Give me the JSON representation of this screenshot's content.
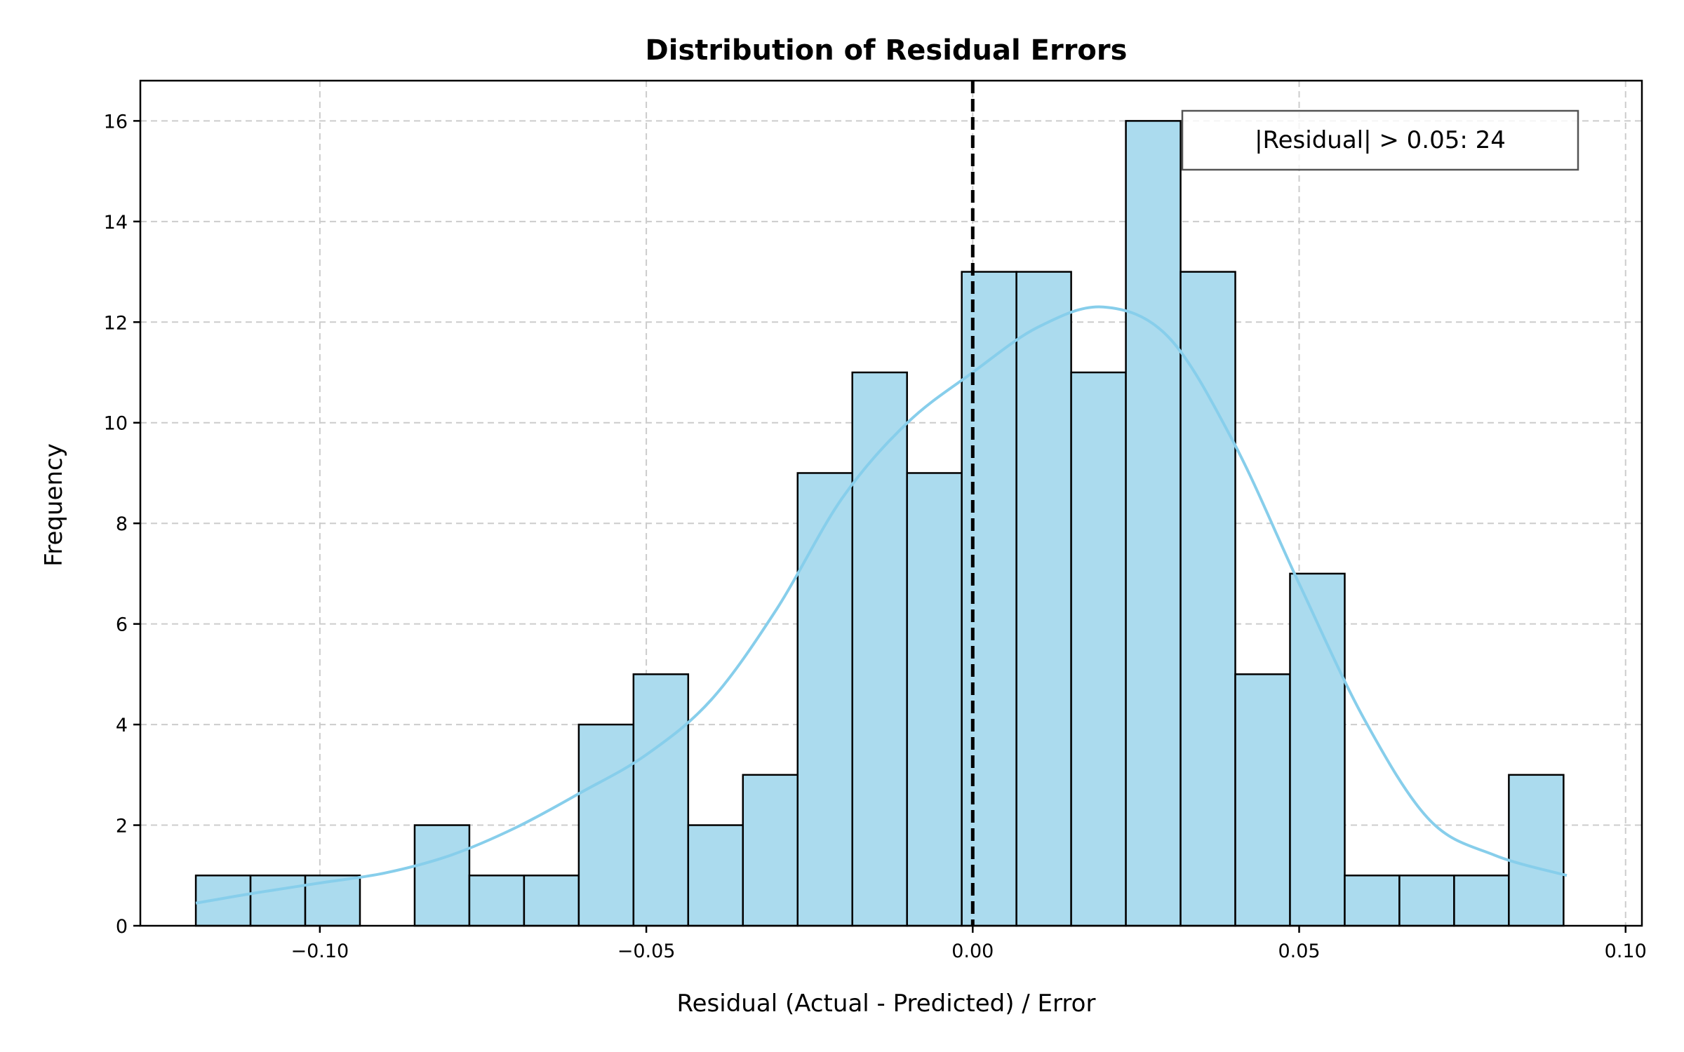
{
  "chart_data": {
    "type": "bar",
    "title": "Distribution of Residual Errors",
    "xlabel": "Residual (Actual - Predicted) / Error",
    "ylabel": "Frequency",
    "xlim": [
      -0.1275,
      0.1025
    ],
    "ylim": [
      0,
      16.8
    ],
    "xticks": [
      -0.1,
      -0.05,
      0.0,
      0.05,
      0.1
    ],
    "xtick_labels": [
      "−0.10",
      "−0.05",
      "0.00",
      "0.05",
      "0.10"
    ],
    "yticks": [
      0,
      2,
      4,
      6,
      8,
      10,
      12,
      14,
      16
    ],
    "ytick_labels": [
      "0",
      "2",
      "4",
      "6",
      "8",
      "10",
      "12",
      "14",
      "16"
    ],
    "grid": true,
    "bins": {
      "start": -0.119,
      "width": 0.00838,
      "counts": [
        1,
        1,
        1,
        0,
        2,
        1,
        1,
        4,
        5,
        2,
        3,
        9,
        11,
        9,
        13,
        13,
        11,
        16,
        13,
        5,
        7,
        1,
        1,
        1,
        3
      ]
    },
    "bar_color": "#ABDBEE",
    "kde": {
      "color": "#87CEEB",
      "x": [
        -0.119,
        -0.11,
        -0.1,
        -0.09,
        -0.08,
        -0.07,
        -0.06,
        -0.05,
        -0.04,
        -0.03,
        -0.02,
        -0.01,
        0.0,
        0.01,
        0.02,
        0.03,
        0.04,
        0.05,
        0.06,
        0.07,
        0.08,
        0.091
      ],
      "y": [
        0.45,
        0.65,
        0.85,
        1.05,
        1.4,
        1.95,
        2.65,
        3.4,
        4.5,
        6.3,
        8.5,
        10.0,
        11.0,
        11.9,
        12.3,
        11.7,
        9.6,
        6.8,
        4.1,
        2.1,
        1.4,
        1.0
      ]
    },
    "reference_line": {
      "x": 0.0,
      "style": "dashed",
      "color": "#000000"
    },
    "annotation": {
      "text": "|Residual| > 0.05: 24",
      "placement": "top-right"
    }
  }
}
